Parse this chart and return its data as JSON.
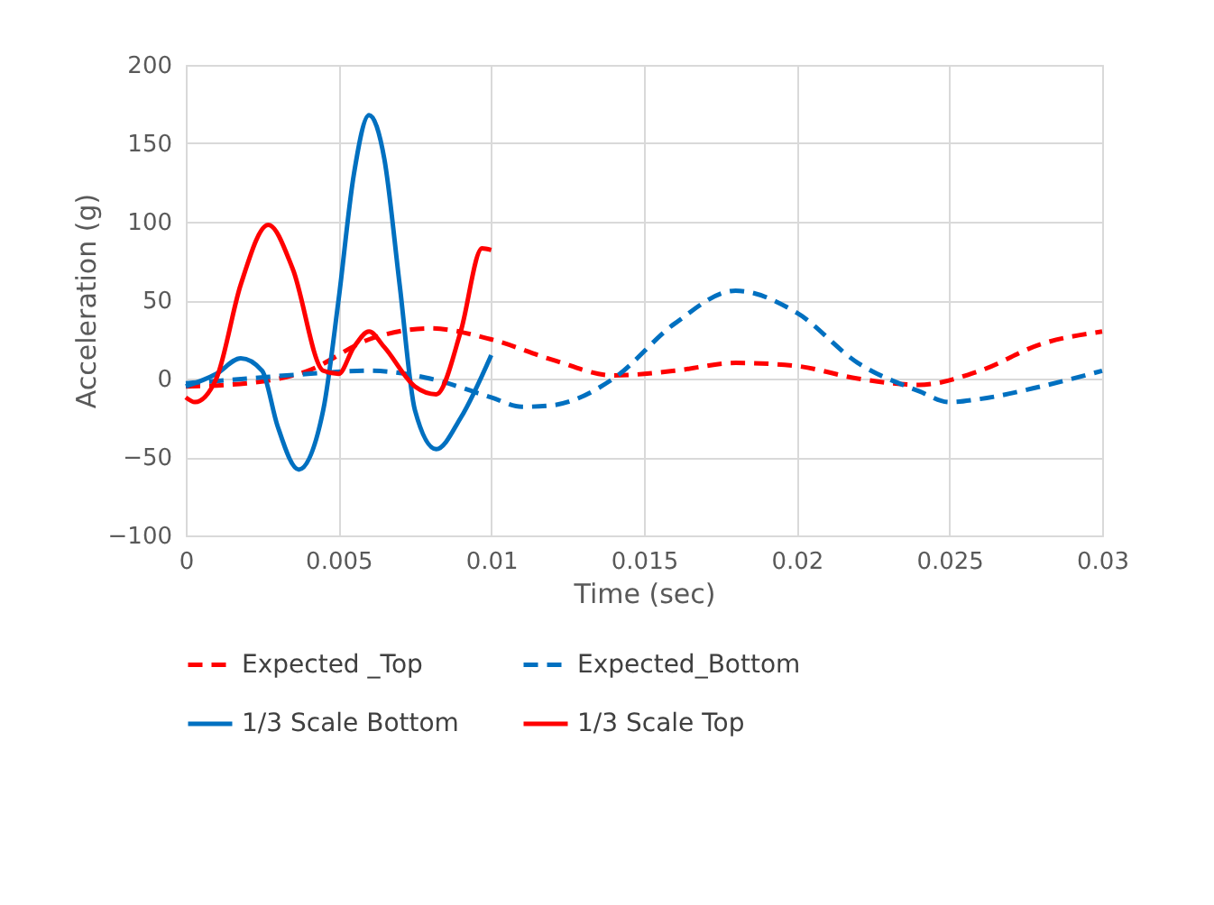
{
  "chart_data": {
    "type": "line",
    "xlabel": "Time (sec)",
    "ylabel": "Acceleration (g)",
    "xlim": [
      0,
      0.03
    ],
    "xticks": [
      0,
      0.005,
      0.01,
      0.015,
      0.02,
      0.025,
      0.03
    ],
    "ylim": [
      -100,
      200
    ],
    "yticks": [
      -100,
      -50,
      0,
      50,
      100,
      150,
      200
    ],
    "grid": true,
    "legend": "bottom",
    "marker": "none",
    "series": [
      {
        "name": "Expected _Top",
        "color": "#ff0000",
        "line_style": "dashed",
        "x": [
          0,
          0.002,
          0.004,
          0.006,
          0.008,
          0.01,
          0.012,
          0.014,
          0.016,
          0.018,
          0.02,
          0.022,
          0.024,
          0.026,
          0.028,
          0.03
        ],
        "values": [
          -5,
          -3,
          5,
          25,
          32,
          25,
          12,
          2,
          5,
          10,
          8,
          0,
          -4,
          5,
          22,
          30
        ]
      },
      {
        "name": "Expected_Bottom",
        "color": "#0070c0",
        "line_style": "dashed",
        "x": [
          0,
          0.002,
          0.004,
          0.006,
          0.008,
          0.01,
          0.011,
          0.012,
          0.014,
          0.016,
          0.018,
          0.02,
          0.022,
          0.024,
          0.025,
          0.026,
          0.028,
          0.03
        ],
        "values": [
          -3,
          0,
          3,
          5,
          0,
          -12,
          -18,
          -17,
          0,
          35,
          56,
          42,
          10,
          -8,
          -15,
          -13,
          -5,
          5
        ]
      },
      {
        "name": "1/3 Scale Bottom",
        "color": "#0070c0",
        "line_style": "solid",
        "x": [
          0,
          0.001,
          0.0018,
          0.0025,
          0.003,
          0.0037,
          0.0045,
          0.005,
          0.0055,
          0.006,
          0.0065,
          0.007,
          0.0075,
          0.0082,
          0.009,
          0.01
        ],
        "values": [
          -5,
          3,
          13,
          5,
          -30,
          -58,
          -20,
          50,
          130,
          168,
          140,
          60,
          -20,
          -45,
          -25,
          15
        ]
      },
      {
        "name": "1/3 Scale Top",
        "color": "#ff0000",
        "line_style": "solid",
        "x": [
          0,
          0.0003,
          0.001,
          0.0018,
          0.0027,
          0.0035,
          0.0045,
          0.005,
          0.0055,
          0.006,
          0.0065,
          0.0075,
          0.0082,
          0.009,
          0.0097,
          0.01
        ],
        "values": [
          -12,
          -15,
          0,
          60,
          98,
          70,
          5,
          3,
          20,
          30,
          20,
          -5,
          -10,
          30,
          83,
          82
        ]
      }
    ]
  }
}
